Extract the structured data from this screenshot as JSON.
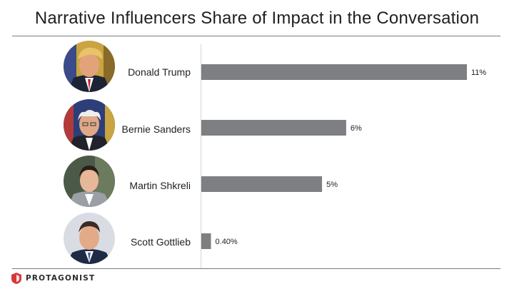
{
  "title": "Narrative Influencers Share of Impact in the Conversation",
  "brand": "PROTAGONIST",
  "colors": {
    "bar": "#7d7f82",
    "accent": "#d8383a",
    "rule": "#7a7a7a"
  },
  "chart_data": {
    "type": "bar",
    "orientation": "horizontal",
    "categories": [
      "Donald Trump",
      "Bernie Sanders",
      "Martin Shkreli",
      "Scott Gottlieb"
    ],
    "values": [
      11,
      6,
      5,
      0.4
    ],
    "value_labels": [
      "11%",
      "6%",
      "5%",
      "0.40%"
    ],
    "unit": "%",
    "xlim": [
      0,
      11
    ],
    "grid": false,
    "legend": "none"
  },
  "people": [
    {
      "name": "Donald Trump",
      "icon": "portrait-donald-trump"
    },
    {
      "name": "Bernie Sanders",
      "icon": "portrait-bernie-sanders"
    },
    {
      "name": "Martin Shkreli",
      "icon": "portrait-martin-shkreli"
    },
    {
      "name": "Scott Gottlieb",
      "icon": "portrait-scott-gottlieb"
    }
  ]
}
